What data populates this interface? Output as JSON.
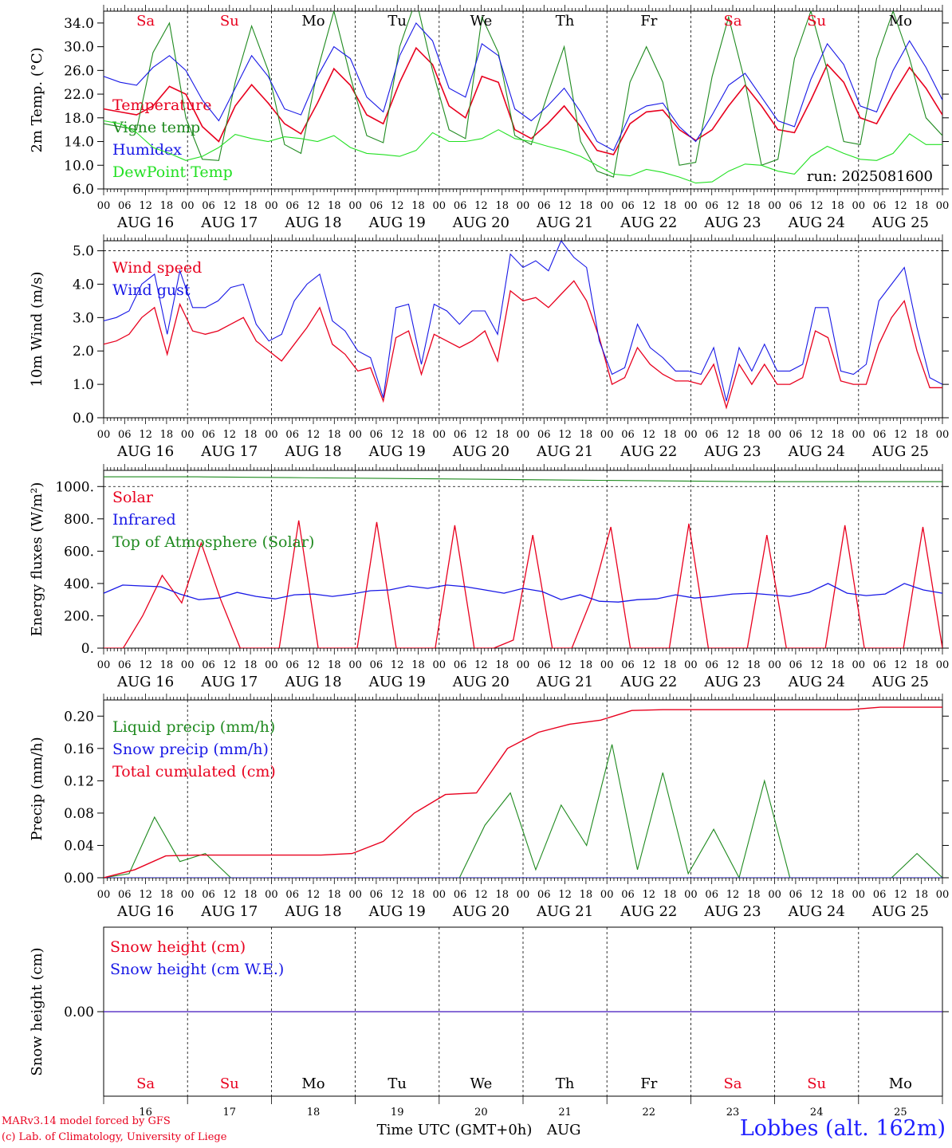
{
  "chart_data": [
    {
      "type": "line",
      "ylabel": "2m Temp. (°C)",
      "ylim": [
        6,
        36
      ],
      "yticks": [
        "6.0",
        "10.0",
        "14.0",
        "18.0",
        "22.0",
        "26.0",
        "30.0",
        "34.0"
      ],
      "run_label": "run: 2025081600",
      "day_names": [
        {
          "label": "Sa",
          "color": "#e8001e"
        },
        {
          "label": "Su",
          "color": "#e8001e"
        },
        {
          "label": "Mo",
          "color": "#000000"
        },
        {
          "label": "Tu",
          "color": "#000000"
        },
        {
          "label": "We",
          "color": "#000000"
        },
        {
          "label": "Th",
          "color": "#000000"
        },
        {
          "label": "Fr",
          "color": "#000000"
        },
        {
          "label": "Sa",
          "color": "#e8001e"
        },
        {
          "label": "Su",
          "color": "#e8001e"
        },
        {
          "label": "Mo",
          "color": "#000000"
        }
      ],
      "series": [
        {
          "name": "Temperature",
          "color": "#e8001e",
          "width": 1.6,
          "values": [
            19.5,
            19,
            18.5,
            20,
            23.3,
            22,
            16.5,
            14,
            20,
            23.6,
            20.5,
            17,
            15.3,
            20.5,
            26.3,
            23.5,
            18.5,
            17,
            24,
            29.8,
            27,
            20,
            18,
            25,
            24,
            16,
            14.5,
            17,
            20,
            16.5,
            12.5,
            11.8,
            17,
            19,
            19.3,
            16,
            14.2,
            16,
            20,
            23.5,
            20,
            16,
            15.5,
            21,
            27,
            24,
            18,
            17,
            22,
            26.5,
            23,
            18.5
          ]
        },
        {
          "name": "Vigne temp",
          "color": "#1f8a1f",
          "width": 1.1,
          "values": [
            17,
            16.5,
            16,
            29,
            34,
            18,
            11,
            10.8,
            24,
            33.5,
            26,
            13.5,
            12,
            26,
            36,
            25,
            15,
            13.8,
            30,
            38,
            26,
            16,
            14.5,
            35,
            29,
            15,
            13.5,
            22,
            30,
            14,
            9,
            8,
            24,
            30,
            24,
            10,
            10.5,
            25,
            35,
            24,
            10,
            11,
            28,
            36,
            26,
            14,
            13.5,
            28,
            36,
            28,
            18,
            15
          ]
        },
        {
          "name": "Humidex",
          "color": "#1818e6",
          "width": 1.1,
          "values": [
            25,
            24,
            23.5,
            26.5,
            28.5,
            26,
            21,
            17.5,
            23,
            28.5,
            25,
            19.5,
            18.5,
            25,
            30,
            28,
            21.5,
            19,
            28.5,
            34,
            31,
            23,
            21.5,
            30.5,
            28.5,
            19.5,
            17.5,
            20,
            23,
            19,
            14,
            12.5,
            18.5,
            20,
            20.5,
            16.5,
            14,
            18.5,
            23.5,
            25.5,
            21.5,
            17.5,
            16.5,
            24.5,
            30.5,
            27,
            20,
            19,
            26,
            31,
            26.5,
            21
          ]
        },
        {
          "name": "DewPoint Temp",
          "color": "#22e022",
          "width": 1.1,
          "values": [
            17.5,
            17,
            15.5,
            13,
            12,
            10.8,
            11.5,
            13,
            15.2,
            14.5,
            14,
            14.8,
            14.5,
            14,
            15,
            13,
            12,
            11.8,
            11.5,
            12.5,
            15.5,
            14,
            14,
            14.5,
            16,
            14.5,
            14,
            13.2,
            12.5,
            11.5,
            10,
            8.5,
            8.2,
            9.3,
            8.8,
            8,
            7,
            7.2,
            9,
            10.2,
            10,
            9,
            8.5,
            11.5,
            13.2,
            12,
            11,
            10.8,
            12,
            15.3,
            13.5,
            13.5
          ]
        }
      ]
    },
    {
      "type": "line",
      "ylabel": "10m Wind (m/s)",
      "ylim": [
        0,
        5.3
      ],
      "yticks": [
        "0.0",
        "1.0",
        "2.0",
        "3.0",
        "4.0",
        "5.0"
      ],
      "series": [
        {
          "name": "Wind speed",
          "color": "#e8001e",
          "width": 1.3,
          "values": [
            2.2,
            2.3,
            2.5,
            3.0,
            3.3,
            1.9,
            3.4,
            2.6,
            2.5,
            2.6,
            2.8,
            3.0,
            2.3,
            2.0,
            1.7,
            2.2,
            2.7,
            3.3,
            2.2,
            1.9,
            1.4,
            1.5,
            0.5,
            2.4,
            2.6,
            1.3,
            2.5,
            2.3,
            2.1,
            2.3,
            2.6,
            1.7,
            3.8,
            3.5,
            3.6,
            3.3,
            3.7,
            4.1,
            3.5,
            2.4,
            1.0,
            1.2,
            2.1,
            1.6,
            1.3,
            1.1,
            1.1,
            1.0,
            1.6,
            0.3,
            1.6,
            1.0,
            1.6,
            1.0,
            1.0,
            1.2,
            2.6,
            2.4,
            1.1,
            1.0,
            1.0,
            2.2,
            3.0,
            3.5,
            2.0,
            0.9,
            0.9
          ]
        },
        {
          "name": "Wind gust",
          "color": "#1818e6",
          "width": 1.1,
          "values": [
            2.9,
            3.0,
            3.2,
            4.0,
            4.3,
            2.5,
            4.4,
            3.3,
            3.3,
            3.5,
            3.9,
            4.0,
            2.8,
            2.3,
            2.5,
            3.5,
            4.0,
            4.3,
            2.9,
            2.6,
            2.0,
            1.8,
            0.6,
            3.3,
            3.4,
            1.6,
            3.4,
            3.2,
            2.8,
            3.2,
            3.2,
            2.5,
            4.9,
            4.5,
            4.7,
            4.4,
            5.3,
            4.8,
            4.5,
            2.3,
            1.3,
            1.5,
            2.8,
            2.1,
            1.8,
            1.4,
            1.4,
            1.3,
            2.1,
            0.5,
            2.1,
            1.4,
            2.2,
            1.4,
            1.4,
            1.6,
            3.3,
            3.3,
            1.4,
            1.3,
            1.6,
            3.5,
            4.0,
            4.5,
            2.7,
            1.2,
            1.0
          ]
        }
      ]
    },
    {
      "type": "line",
      "ylabel": "Energy fluxes (W/m²)",
      "ylim": [
        0,
        1100
      ],
      "yticks": [
        "0.",
        "200.",
        "400.",
        "600.",
        "800.",
        "1000."
      ],
      "series": [
        {
          "name": "Solar",
          "color": "#e8001e",
          "width": 1.3,
          "values": [
            0,
            0,
            200,
            450,
            280,
            650,
            300,
            0,
            0,
            0,
            790,
            0,
            0,
            0,
            780,
            0,
            0,
            0,
            760,
            0,
            0,
            50,
            700,
            0,
            0,
            300,
            750,
            0,
            0,
            0,
            770,
            0,
            0,
            0,
            700,
            0,
            0,
            0,
            760,
            0,
            0,
            0,
            750,
            0
          ]
        },
        {
          "name": "Infrared",
          "color": "#1818e6",
          "width": 1.3,
          "values": [
            340,
            390,
            385,
            380,
            335,
            300,
            310,
            345,
            320,
            305,
            330,
            335,
            320,
            335,
            355,
            360,
            385,
            370,
            390,
            380,
            360,
            340,
            370,
            350,
            300,
            330,
            290,
            285,
            300,
            305,
            330,
            310,
            320,
            335,
            340,
            330,
            320,
            345,
            400,
            340,
            325,
            335,
            400,
            360,
            340
          ]
        },
        {
          "name": "Top of Atmosphere (Solar)",
          "color": "#1f8a1f",
          "width": 1.1,
          "values": [
            1060,
            1060,
            1055,
            1050,
            1045,
            1040,
            1035,
            1030,
            1030,
            1030
          ]
        }
      ]
    },
    {
      "type": "line",
      "ylabel": "Precip (mm/h)",
      "ylim": [
        0,
        0.22
      ],
      "yticks": [
        "0.00",
        "0.04",
        "0.08",
        "0.12",
        "0.16",
        "0.20"
      ],
      "series": [
        {
          "name": "Liquid precip (mm/h)",
          "color": "#1f8a1f",
          "width": 1.1,
          "values": [
            0,
            0.005,
            0.075,
            0.02,
            0.03,
            0,
            0,
            0,
            0,
            0,
            0,
            0,
            0,
            0,
            0,
            0.065,
            0.105,
            0.01,
            0.09,
            0.04,
            0.165,
            0.01,
            0.13,
            0.005,
            0.06,
            0,
            0.12,
            0,
            0,
            0,
            0,
            0,
            0.03,
            0
          ]
        },
        {
          "name": "Snow precip (mm/h)",
          "color": "#1818e6",
          "width": 1.1,
          "values": [
            0,
            0,
            0,
            0,
            0,
            0,
            0,
            0,
            0,
            0
          ]
        },
        {
          "name": "Total cumulated (cm)",
          "color": "#e8001e",
          "width": 1.4,
          "values": [
            0,
            0.01,
            0.027,
            0.028,
            0.028,
            0.028,
            0.028,
            0.028,
            0.03,
            0.045,
            0.08,
            0.103,
            0.105,
            0.16,
            0.18,
            0.19,
            0.195,
            0.207,
            0.208,
            0.208,
            0.208,
            0.208,
            0.208,
            0.208,
            0.208,
            0.211,
            0.211,
            0.211
          ]
        }
      ]
    },
    {
      "type": "line",
      "ylabel": "Snow height (cm)",
      "ylim": [
        -1,
        1
      ],
      "yticks": [
        "0.00"
      ],
      "series": [
        {
          "name": "Snow height (cm)",
          "color": "#e8001e",
          "width": 1.3,
          "values": [
            0,
            0
          ]
        },
        {
          "name": "Snow height (cm W.E.)",
          "color": "#1818e6",
          "width": 1.1,
          "values": [
            0,
            0
          ]
        }
      ]
    }
  ],
  "x_axis": {
    "hour_labels": [
      "00",
      "06",
      "12",
      "18"
    ],
    "final_hour_label": "00",
    "date_labels": [
      "AUG 16",
      "AUG 17",
      "AUG 18",
      "AUG 19",
      "AUG 20",
      "AUG 21",
      "AUG 22",
      "AUG 23",
      "AUG 24",
      "AUG 25"
    ],
    "bottom_day_numbers": [
      "16",
      "17",
      "18",
      "19",
      "20",
      "21",
      "22",
      "23",
      "24",
      "25"
    ],
    "bottom_day_names": [
      {
        "label": "Sa",
        "color": "#e8001e"
      },
      {
        "label": "Su",
        "color": "#e8001e"
      },
      {
        "label": "Mo",
        "color": "#000000"
      },
      {
        "label": "Tu",
        "color": "#000000"
      },
      {
        "label": "We",
        "color": "#000000"
      },
      {
        "label": "Th",
        "color": "#000000"
      },
      {
        "label": "Fr",
        "color": "#000000"
      },
      {
        "label": "Sa",
        "color": "#e8001e"
      },
      {
        "label": "Su",
        "color": "#e8001e"
      },
      {
        "label": "Mo",
        "color": "#000000"
      }
    ],
    "xlabel": "Time UTC (GMT+0h)",
    "month": "AUG"
  },
  "footer": {
    "credit1": "MARv3.14 model forced by GFS",
    "credit2": "(c) Lab. of Climatology, University of Liege",
    "location": "Lobbes (alt. 162m)"
  }
}
